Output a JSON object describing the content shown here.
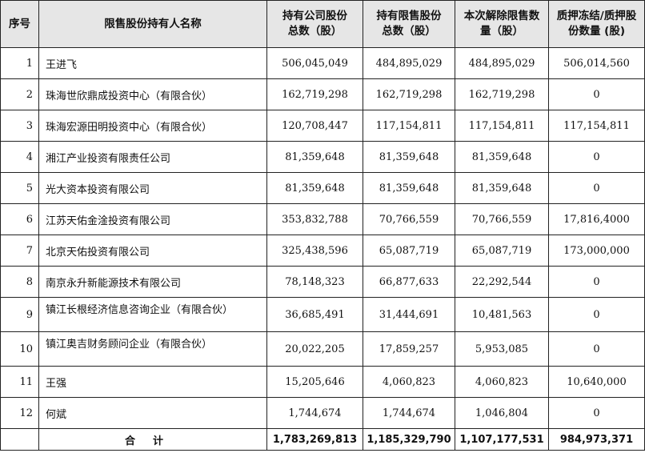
{
  "headers": {
    "index": "序号",
    "name": "限售股份持有人名称",
    "total_shares": "持有公司股份总数（股）",
    "restricted_shares": "持有限售股份总数（股）",
    "released_shares": "本次解除限售数量（股）",
    "pledged_shares": "质押冻结/质押股份数量 (股)"
  },
  "rows": [
    {
      "index": "1",
      "name": "王进飞",
      "total_shares": "506,045,049",
      "restricted_shares": "484,895,029",
      "released_shares": "484,895,029",
      "pledged_shares": "506,014,560"
    },
    {
      "index": "2",
      "name": "珠海世欣鼎成投资中心（有限合伙）",
      "total_shares": "162,719,298",
      "restricted_shares": "162,719,298",
      "released_shares": "162,719,298",
      "pledged_shares": "0"
    },
    {
      "index": "3",
      "name": "珠海宏源田明投资中心（有限合伙）",
      "total_shares": "120,708,447",
      "restricted_shares": "117,154,811",
      "released_shares": "117,154,811",
      "pledged_shares": "117,154,811"
    },
    {
      "index": "4",
      "name": "湘江产业投资有限责任公司",
      "total_shares": "81,359,648",
      "restricted_shares": "81,359,648",
      "released_shares": "81,359,648",
      "pledged_shares": "0"
    },
    {
      "index": "5",
      "name": "光大资本投资有限公司",
      "total_shares": "81,359,648",
      "restricted_shares": "81,359,648",
      "released_shares": "81,359,648",
      "pledged_shares": "0"
    },
    {
      "index": "6",
      "name": "江苏天佑金淦投资有限公司",
      "total_shares": "353,832,788",
      "restricted_shares": "70,766,559",
      "released_shares": "70,766,559",
      "pledged_shares": "17,816,4000"
    },
    {
      "index": "7",
      "name": "北京天佑投资有限公司",
      "total_shares": "325,438,596",
      "restricted_shares": "65,087,719",
      "released_shares": "65,087,719",
      "pledged_shares": "173,000,000"
    },
    {
      "index": "8",
      "name": "南京永升新能源技术有限公司",
      "total_shares": "78,148,323",
      "restricted_shares": "66,877,633",
      "released_shares": "22,292,544",
      "pledged_shares": "0"
    },
    {
      "index": "9",
      "name": "镇江长根经济信息咨询企业（有限合伙）",
      "total_shares": "36,685,491",
      "restricted_shares": "31,444,691",
      "released_shares": "10,481,563",
      "pledged_shares": "0"
    },
    {
      "index": "10",
      "name": "镇江奥吉财务顾问企业（有限合伙）",
      "total_shares": "20,022,205",
      "restricted_shares": "17,859,257",
      "released_shares": "5,953,085",
      "pledged_shares": "0"
    },
    {
      "index": "11",
      "name": "王强",
      "total_shares": "15,205,646",
      "restricted_shares": "4,060,823",
      "released_shares": "4,060,823",
      "pledged_shares": "10,640,000"
    },
    {
      "index": "12",
      "name": "何斌",
      "total_shares": "1,744,674",
      "restricted_shares": "1,744,674",
      "released_shares": "1,046,804",
      "pledged_shares": "0"
    }
  ],
  "total": {
    "label": "合计",
    "total_shares": "1,783,269,813",
    "restricted_shares": "1,185,329,790",
    "released_shares": "1,107,177,531",
    "pledged_shares": "984,973,371"
  }
}
